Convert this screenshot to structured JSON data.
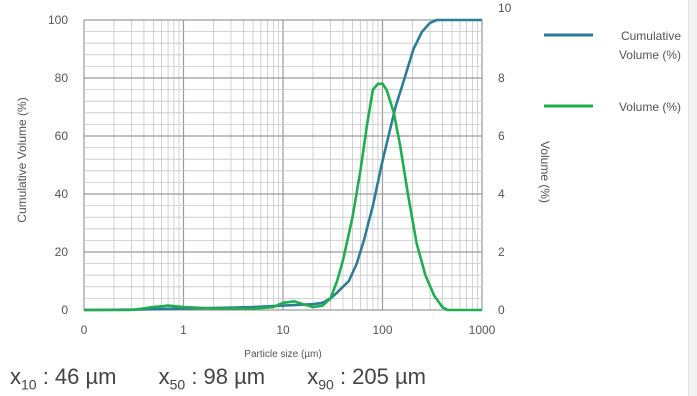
{
  "chart_data": {
    "type": "line",
    "xlabel": "Particle size (µm)",
    "ylabel_left": "Cumulative Volume (%)",
    "ylabel_right": "Volume (%)",
    "xscale": "log",
    "xlim": [
      0,
      1000
    ],
    "ylim_left": [
      0,
      100
    ],
    "ylim_right": [
      0,
      10
    ],
    "grid": true,
    "legend_position": "right",
    "x_ticks": [
      "0",
      "1",
      "10",
      "100",
      "1000"
    ],
    "y_left_ticks": [
      "0",
      "20",
      "40",
      "60",
      "80",
      "100"
    ],
    "y_right_ticks": [
      "0",
      "2",
      "4",
      "6",
      "8",
      "10"
    ],
    "series": [
      {
        "name": "Cumulative Volume (%)",
        "color": "#2e7d96",
        "axis": "left",
        "x": [
          0.1,
          0.3,
          0.5,
          1,
          3,
          5,
          10,
          15,
          20,
          25,
          30,
          35,
          40,
          46,
          55,
          65,
          80,
          98,
          115,
          135,
          160,
          205,
          250,
          300,
          350,
          400,
          500,
          700,
          1000
        ],
        "y": [
          0,
          0.1,
          0.3,
          0.5,
          0.8,
          1.0,
          1.5,
          1.8,
          2.0,
          2.5,
          4,
          6,
          8,
          10,
          16,
          24,
          36,
          50,
          60,
          70,
          78,
          90,
          96,
          99,
          100,
          100,
          100,
          100,
          100
        ]
      },
      {
        "name": "Volume (%)",
        "color": "#1fad4f",
        "axis": "right",
        "x": [
          0.1,
          0.3,
          0.5,
          0.7,
          1,
          2,
          5,
          8,
          10,
          13,
          16,
          20,
          25,
          30,
          35,
          40,
          50,
          60,
          70,
          80,
          90,
          100,
          110,
          130,
          150,
          180,
          220,
          270,
          330,
          400,
          450,
          500,
          600,
          1000
        ],
        "y": [
          0,
          0,
          0.1,
          0.15,
          0.1,
          0.05,
          0.05,
          0.1,
          0.25,
          0.3,
          0.2,
          0.1,
          0.15,
          0.4,
          1.0,
          1.7,
          3.2,
          4.8,
          6.4,
          7.6,
          7.8,
          7.8,
          7.6,
          6.8,
          5.7,
          4.0,
          2.3,
          1.2,
          0.5,
          0.1,
          0,
          0,
          0,
          0
        ]
      }
    ]
  },
  "stats": [
    {
      "symbol": "x",
      "sub": "10",
      "text": " : 46  µm"
    },
    {
      "symbol": "x",
      "sub": "50",
      "text": " : 98  µm"
    },
    {
      "symbol": "x",
      "sub": "90",
      "text": " : 205  µm"
    }
  ]
}
